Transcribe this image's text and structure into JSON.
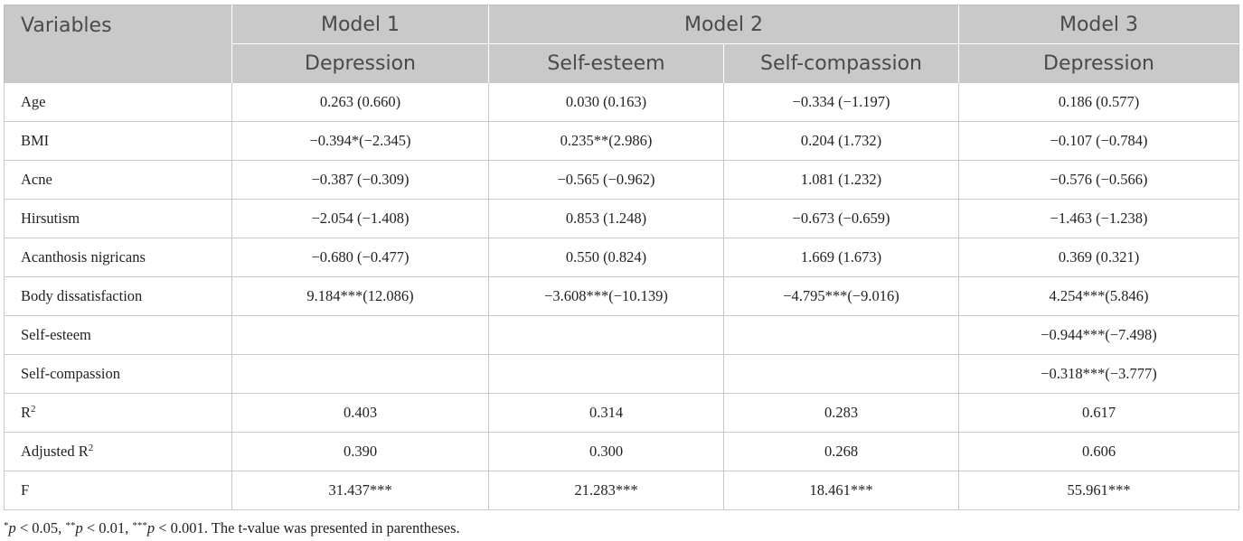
{
  "header": {
    "variables": "Variables",
    "model1": "Model 1",
    "model2": "Model 2",
    "model3": "Model 3",
    "sub": [
      "Depression",
      "Self-esteem",
      "Self-compassion",
      "Depression"
    ]
  },
  "rows": [
    {
      "label": "Age",
      "values": [
        "0.263 (0.660)",
        "0.030 (0.163)",
        "−0.334 (−1.197)",
        "0.186 (0.577)"
      ]
    },
    {
      "label": "BMI",
      "values": [
        "−0.394*(−2.345)",
        "0.235**(2.986)",
        "0.204 (1.732)",
        "−0.107 (−0.784)"
      ]
    },
    {
      "label": "Acne",
      "values": [
        "−0.387 (−0.309)",
        "−0.565 (−0.962)",
        "1.081 (1.232)",
        "−0.576 (−0.566)"
      ]
    },
    {
      "label": "Hirsutism",
      "values": [
        "−2.054 (−1.408)",
        "0.853 (1.248)",
        "−0.673 (−0.659)",
        "−1.463 (−1.238)"
      ]
    },
    {
      "label": "Acanthosis nigricans",
      "values": [
        "−0.680 (−0.477)",
        "0.550 (0.824)",
        "1.669 (1.673)",
        "0.369 (0.321)"
      ]
    },
    {
      "label": "Body dissatisfaction",
      "values": [
        "9.184***(12.086)",
        "−3.608***(−10.139)",
        "−4.795***(−9.016)",
        "4.254***(5.846)"
      ]
    },
    {
      "label": "Self-esteem",
      "values": [
        "",
        "",
        "",
        "−0.944***(−7.498)"
      ]
    },
    {
      "label": "Self-compassion",
      "values": [
        "",
        "",
        "",
        "−0.318***(−3.777)"
      ]
    },
    {
      "label": "R",
      "label_sup": "2",
      "values": [
        "0.403",
        "0.314",
        "0.283",
        "0.617"
      ]
    },
    {
      "label": "Adjusted R",
      "label_sup": "2",
      "values": [
        "0.390",
        "0.300",
        "0.268",
        "0.606"
      ]
    },
    {
      "label": "F",
      "values": [
        "31.437***",
        "21.283***",
        "18.461***",
        "55.961***"
      ]
    }
  ],
  "footnote": {
    "s1": "*",
    "p1": "p",
    "t1": " < 0.05, ",
    "s2": "**",
    "p2": "p",
    "t2": " < 0.01, ",
    "s3": "***",
    "p3": "p",
    "t3": " < 0.001. The t-value was presented in parentheses."
  }
}
